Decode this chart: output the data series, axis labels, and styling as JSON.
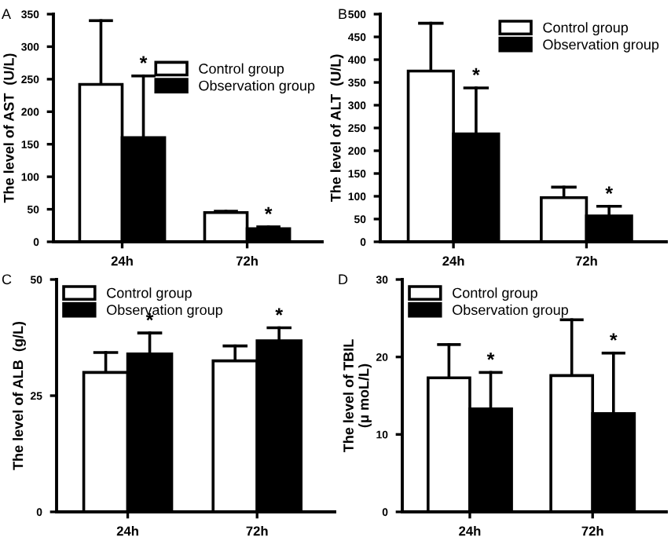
{
  "chart_data": [
    {
      "type": "bar",
      "ylabel": "The level of AST  (U/L)",
      "categories": [
        "24h",
        "72h"
      ],
      "ylim": [
        0,
        350
      ],
      "yticks": [
        0,
        50,
        100,
        150,
        200,
        250,
        300,
        350
      ],
      "legend": "right",
      "grid": false,
      "series": [
        {
          "name": "Control group",
          "color": "#ffffff",
          "values": [
            242,
            45
          ],
          "errors": [
            [
              242,
              340
            ],
            [
              45,
              47
            ]
          ]
        },
        {
          "name": "Observation group",
          "color": "#000000",
          "values": [
            160,
            20
          ],
          "errors": [
            [
              160,
              255
            ],
            [
              20,
              23
            ]
          ]
        }
      ],
      "annotations": [
        "A",
        "*",
        "*"
      ]
    },
    {
      "type": "bar",
      "ylabel": "The level of ALT  (U/L)",
      "categories": [
        "24h",
        "72h"
      ],
      "ylim": [
        0,
        500
      ],
      "yticks": [
        0,
        50,
        100,
        150,
        200,
        250,
        300,
        350,
        400,
        450,
        500
      ],
      "legend": "top right",
      "grid": false,
      "series": [
        {
          "name": "Control group",
          "color": "#ffffff",
          "values": [
            375,
            97
          ],
          "errors": [
            [
              375,
              480
            ],
            [
              97,
              120
            ]
          ]
        },
        {
          "name": "Observation group",
          "color": "#000000",
          "values": [
            237,
            57
          ],
          "errors": [
            [
              237,
              338
            ],
            [
              57,
              78
            ]
          ]
        }
      ],
      "annotations": [
        "B",
        "*",
        "*"
      ]
    },
    {
      "type": "bar",
      "ylabel": "The level of ALB  (g/L)",
      "categories": [
        "24h",
        "72h"
      ],
      "ylim": [
        0,
        50
      ],
      "yticks": [
        0,
        25,
        50
      ],
      "legend": "top left",
      "grid": false,
      "series": [
        {
          "name": "Control group",
          "color": "#ffffff",
          "values": [
            30,
            32.5
          ],
          "errors": [
            [
              30,
              34.3
            ],
            [
              32.5,
              35.7
            ]
          ]
        },
        {
          "name": "Observation group",
          "color": "#000000",
          "values": [
            34,
            36.8
          ],
          "errors": [
            [
              34,
              38.5
            ],
            [
              36.8,
              39.6
            ]
          ]
        }
      ],
      "annotations": [
        "C",
        "*",
        "*"
      ]
    },
    {
      "type": "bar",
      "ylabel": "The level of TBIL\n(μ moL/L)",
      "categories": [
        "24h",
        "72h"
      ],
      "ylim": [
        0,
        30
      ],
      "yticks": [
        0,
        10,
        20,
        30
      ],
      "legend": "top left",
      "grid": false,
      "series": [
        {
          "name": "Control group",
          "color": "#ffffff",
          "values": [
            17.3,
            17.6
          ],
          "errors": [
            [
              17.3,
              21.6
            ],
            [
              17.6,
              24.8
            ]
          ]
        },
        {
          "name": "Observation group",
          "color": "#000000",
          "values": [
            13.3,
            12.7
          ],
          "errors": [
            [
              13.3,
              18
            ],
            [
              12.7,
              20.5
            ]
          ]
        }
      ],
      "annotations": [
        "D",
        "*",
        "*"
      ]
    }
  ]
}
